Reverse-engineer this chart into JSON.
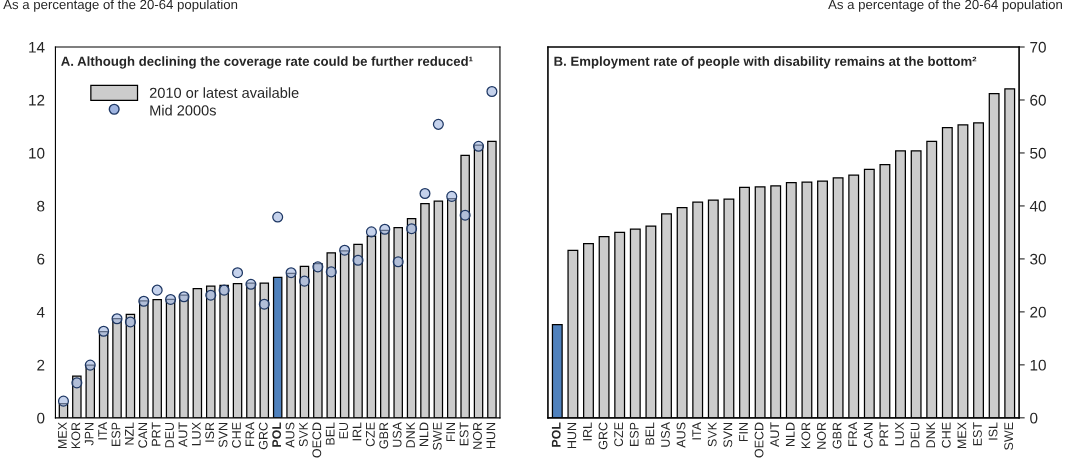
{
  "chart_data": [
    {
      "type": "bar",
      "title": "A. Although declining the coverage rate could be further reduced¹",
      "ylabel": "As a percentage of the 20-64 population",
      "categories": [
        "MEX",
        "KOR",
        "JPN",
        "ITA",
        "ESP",
        "NZL",
        "CAN",
        "PRT",
        "DEU",
        "AUT",
        "LUX",
        "ISR",
        "SVN",
        "CHE",
        "FRA",
        "GRC",
        "POL",
        "AUS",
        "SVK",
        "OECD",
        "BEL",
        "EU",
        "IRL",
        "CZE",
        "GBR",
        "USA",
        "DNK",
        "NLD",
        "SWE",
        "FIN",
        "EST",
        "NOR",
        "HUN"
      ],
      "series": [
        {
          "name": "2010 or latest available",
          "color": "#cccccc",
          "colors": [
            "#cccccc",
            "#cccccc",
            "#cccccc",
            "#cccccc",
            "#cccccc",
            "#cccccc",
            "#cccccc",
            "#cccccc",
            "#cccccc",
            "#cccccc",
            "#cccccc",
            "#cccccc",
            "#cccccc",
            "#cccccc",
            "#cccccc",
            "#cccccc",
            "#4f81bd",
            "#cccccc",
            "#cccccc",
            "#cccccc",
            "#cccccc",
            "#cccccc",
            "#cccccc",
            "#cccccc",
            "#cccccc",
            "#cccccc",
            "#cccccc",
            "#cccccc",
            "#cccccc",
            "#cccccc",
            "#cccccc",
            "#cccccc",
            "#cccccc"
          ],
          "values": [
            0.54,
            1.57,
            1.99,
            3.25,
            3.75,
            3.91,
            4.42,
            4.46,
            4.47,
            4.63,
            4.88,
            4.97,
            5.0,
            5.07,
            5.09,
            5.09,
            5.3,
            5.45,
            5.72,
            5.82,
            6.23,
            6.3,
            6.55,
            6.86,
            7.08,
            7.18,
            7.52,
            8.09,
            8.18,
            8.28,
            9.91,
            10.3,
            10.44
          ]
        },
        {
          "name": "Mid 2000s",
          "type": "scatter",
          "color": "#9fb4e0",
          "values": [
            0.63,
            1.32,
            1.99,
            3.27,
            3.74,
            3.62,
            4.4,
            4.82,
            4.47,
            4.57,
            null,
            4.63,
            4.82,
            5.48,
            5.04,
            4.29,
            7.58,
            5.48,
            5.16,
            5.7,
            5.51,
            6.33,
            5.95,
            7.02,
            7.12,
            5.89,
            7.14,
            8.47,
            11.08,
            8.36,
            7.65,
            10.25,
            12.32
          ]
        }
      ],
      "ylim": [
        0,
        14
      ],
      "yticks": [
        0,
        2,
        4,
        6,
        8,
        10,
        12,
        14
      ],
      "legend": "top left",
      "marker": "circle",
      "grid": false
    },
    {
      "type": "bar",
      "title": "B. Employment rate of people with disability remains at the bottom²",
      "y2label": "As a percentage of the 20-64 population",
      "categories": [
        "POL",
        "HUN",
        "IRL",
        "GRC",
        "CZE",
        "ESP",
        "BEL",
        "USA",
        "AUS",
        "ITA",
        "SVK",
        "SVN",
        "FIN",
        "OECD",
        "AUT",
        "NLD",
        "KOR",
        "NOR",
        "GBR",
        "FRA",
        "CAN",
        "PRT",
        "LUX",
        "DEU",
        "DNK",
        "CHE",
        "MEX",
        "EST",
        "ISL",
        "SWE"
      ],
      "series": [
        {
          "axis": "y2",
          "color": "#cccccc",
          "colors": [
            "#4f81bd",
            "#cccccc",
            "#cccccc",
            "#cccccc",
            "#cccccc",
            "#cccccc",
            "#cccccc",
            "#cccccc",
            "#cccccc",
            "#cccccc",
            "#cccccc",
            "#cccccc",
            "#cccccc",
            "#cccccc",
            "#cccccc",
            "#cccccc",
            "#cccccc",
            "#cccccc",
            "#cccccc",
            "#cccccc",
            "#cccccc",
            "#cccccc",
            "#cccccc",
            "#cccccc",
            "#cccccc",
            "#cccccc",
            "#cccccc",
            "#cccccc",
            "#cccccc",
            "#cccccc"
          ],
          "values": [
            17.6,
            31.6,
            32.9,
            34.2,
            35.0,
            35.6,
            36.2,
            38.5,
            39.7,
            40.7,
            41.1,
            41.3,
            43.5,
            43.6,
            43.8,
            44.4,
            44.5,
            44.7,
            45.3,
            45.8,
            46.9,
            47.8,
            50.4,
            50.4,
            52.2,
            54.8,
            55.3,
            55.7,
            61.2,
            62.1
          ]
        }
      ],
      "y2lim": [
        0,
        70
      ],
      "y2ticks": [
        0,
        10,
        20,
        30,
        40,
        50,
        60,
        70
      ],
      "tick_labels": "y2",
      "grid": false
    }
  ]
}
